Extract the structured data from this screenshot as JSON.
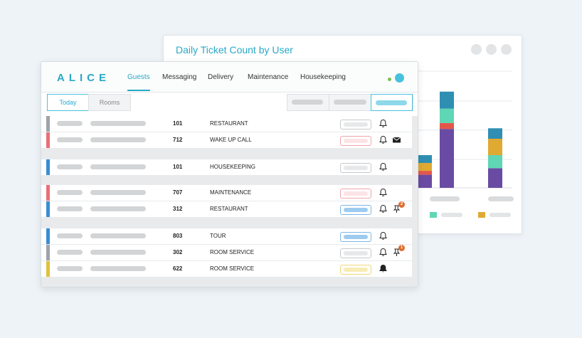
{
  "chart_card": {
    "title": "Daily Ticket Count by User"
  },
  "chart_data": {
    "type": "bar",
    "stacked": true,
    "title": "Daily Ticket Count by User",
    "categories": [
      "",
      "",
      ""
    ],
    "series": [
      {
        "color": "#6a4ba3",
        "values": [
          2,
          9,
          3
        ]
      },
      {
        "color": "#e3574a",
        "values": [
          0.6,
          0.9,
          0.0
        ]
      },
      {
        "color": "#5fd6b4",
        "values": [
          0.0,
          2.2,
          2.0
        ]
      },
      {
        "color": "#e0a931",
        "values": [
          1.2,
          0.0,
          2.5
        ]
      },
      {
        "color": "#2f8fb3",
        "values": [
          1.2,
          2.6,
          1.6
        ]
      }
    ],
    "colors_extra": {
      "orange_block": "#e3574a",
      "mustard_block": "#e0a931"
    },
    "grid": true,
    "legend_swatches": [
      "#5fd6b4",
      "#e0a931"
    ]
  },
  "app": {
    "logo": "ALICE",
    "nav": [
      "Guests",
      "Messaging",
      "Delivery",
      "Maintenance",
      "Housekeeping"
    ],
    "active_nav": "Guests"
  },
  "tabs": {
    "today": "Today",
    "rooms": "Rooms"
  },
  "rows": [
    {
      "bar_color": "#9ea3a8",
      "room": "101",
      "service": "RESTAURANT",
      "status_color": "#c6c8ca",
      "status_fill": "#e7e8e9",
      "icons": [
        "bell-icon"
      ]
    },
    {
      "bar_color": "#ea6f78",
      "room": "712",
      "service": "WAKE UP CALL",
      "status_color": "#f2a5ab",
      "status_fill": "#fbe4e6",
      "icons": [
        "bell-icon",
        "envelope-icon"
      ]
    },
    {
      "bar_color": "#3a8ed3",
      "room": "101",
      "service": "HOUSEKEEPING",
      "status_color": "#c6c8ca",
      "status_fill": "#e7e8e9",
      "icons": [
        "bell-icon"
      ]
    },
    {
      "bar_color": "#ea6f78",
      "room": "707",
      "service": "MAINTENANCE",
      "status_color": "#f2a5ab",
      "status_fill": "#fbe4e6",
      "icons": [
        "bell-icon"
      ]
    },
    {
      "bar_color": "#3a8ed3",
      "room": "312",
      "service": "RESTAURANT",
      "status_color": "#7db6e6",
      "status_fill": "#9ecbf0",
      "icons": [
        "bell-icon",
        "pin-icon"
      ],
      "badge": "2"
    },
    {
      "bar_color": "#3a8ed3",
      "room": "803",
      "service": "TOUR",
      "status_color": "#7db6e6",
      "status_fill": "#9ecbf0",
      "icons": [
        "bell-icon"
      ]
    },
    {
      "bar_color": "#9ea3a8",
      "room": "302",
      "service": "ROOM SERVICE",
      "status_color": "#c6c8ca",
      "status_fill": "#e7e8e9",
      "icons": [
        "bell-icon",
        "pin-icon"
      ],
      "badge": "1"
    },
    {
      "bar_color": "#e0c13a",
      "room": "622",
      "service": "ROOM SERVICE",
      "status_color": "#efd876",
      "status_fill": "#f8ecb6",
      "icons": [
        "bell-filled-icon"
      ]
    }
  ]
}
